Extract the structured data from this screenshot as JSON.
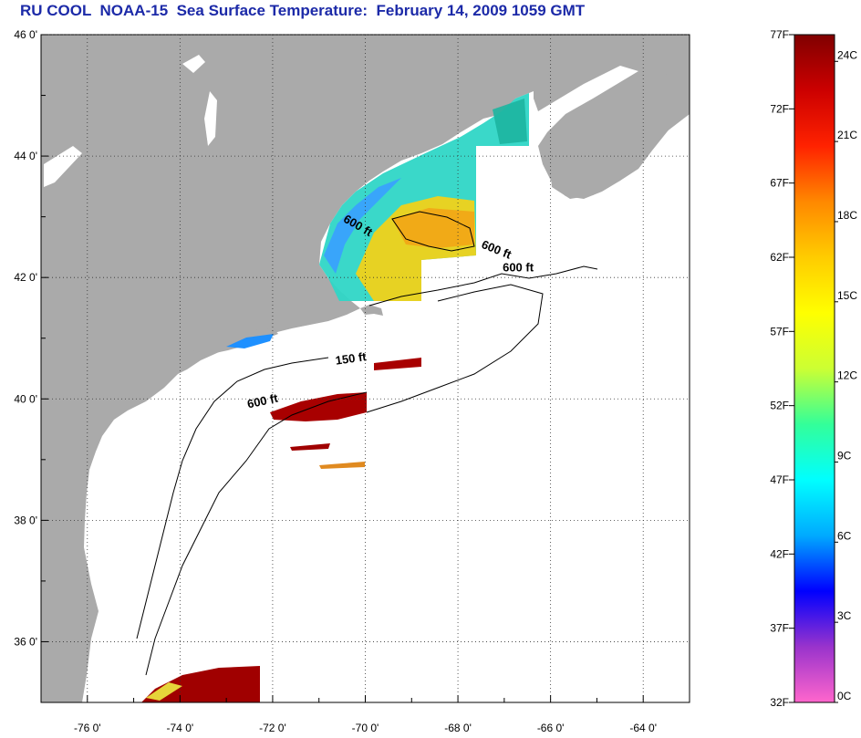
{
  "title": "RU COOL  NOAA-15  Sea Surface Temperature:  February 14, 2009 1059 GMT",
  "map": {
    "lon_range": [
      -77,
      -63
    ],
    "lat_range": [
      35,
      46
    ],
    "lat_ticks": [
      {
        "value": 46,
        "label": "46 0'"
      },
      {
        "value": 44,
        "label": "44 0'"
      },
      {
        "value": 42,
        "label": "42 0'"
      },
      {
        "value": 40,
        "label": "40 0'"
      },
      {
        "value": 38,
        "label": "38 0'"
      },
      {
        "value": 36,
        "label": "36 0'"
      }
    ],
    "lon_ticks": [
      {
        "value": -76,
        "label": "-76 0'"
      },
      {
        "value": -74,
        "label": "-74 0'"
      },
      {
        "value": -72,
        "label": "-72 0'"
      },
      {
        "value": -70,
        "label": "-70 0'"
      },
      {
        "value": -68,
        "label": "-68 0'"
      },
      {
        "value": -66,
        "label": "-66 0'"
      },
      {
        "value": -64,
        "label": "-64 0'"
      }
    ],
    "grid": "dotted",
    "land_color": "#aaaaaa",
    "contour_labels": [
      {
        "text": "600 ft",
        "lon": -70.2,
        "lat": 42.8,
        "angle": 30
      },
      {
        "text": "600 ft",
        "lon": -67.2,
        "lat": 42.4,
        "angle": 22
      },
      {
        "text": "600 ft",
        "lon": -66.7,
        "lat": 42.1,
        "angle": 0
      },
      {
        "text": "150 ft",
        "lon": -70.3,
        "lat": 40.6,
        "angle": -8
      },
      {
        "text": "600 ft",
        "lon": -72.2,
        "lat": 39.9,
        "angle": -12
      }
    ]
  },
  "colorbar": {
    "f_labels": [
      "77F",
      "72F",
      "67F",
      "62F",
      "57F",
      "52F",
      "47F",
      "42F",
      "37F",
      "32F"
    ],
    "f_values": [
      77,
      72,
      67,
      62,
      57,
      52,
      47,
      42,
      37,
      32
    ],
    "c_labels": [
      "24C",
      "21C",
      "18C",
      "15C",
      "12C",
      "9C",
      "6C",
      "3C",
      "0C"
    ],
    "c_values": [
      24,
      21,
      18,
      15,
      12,
      9,
      6,
      3,
      0
    ],
    "range_f": [
      32,
      77
    ],
    "stops": [
      "#ff66cc",
      "#9933cc",
      "#0000ff",
      "#00aaff",
      "#00ffff",
      "#33ff99",
      "#ccff33",
      "#ffff00",
      "#ffcc00",
      "#ff8800",
      "#ff2200",
      "#cc0000",
      "#800000"
    ]
  }
}
